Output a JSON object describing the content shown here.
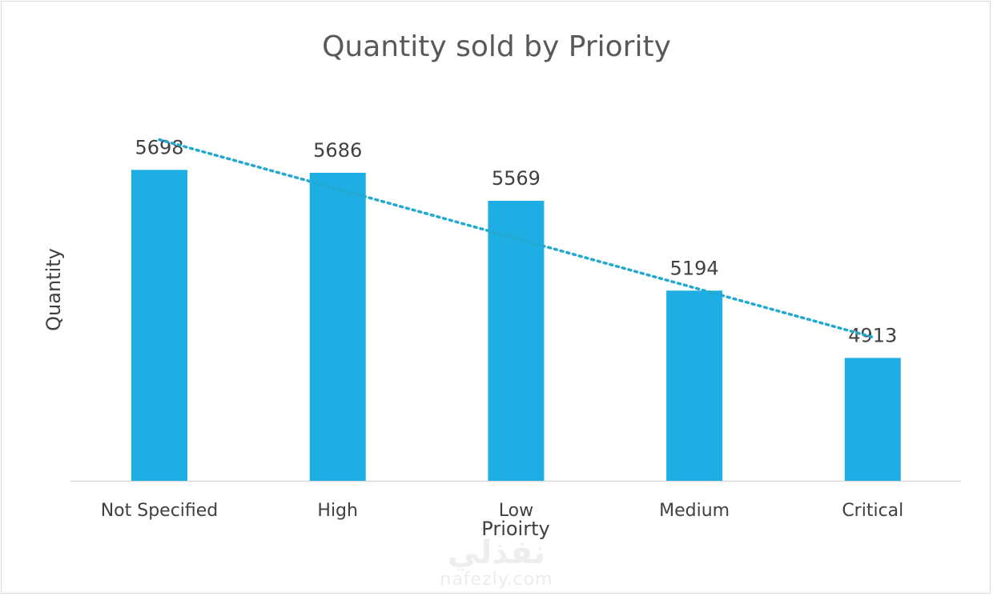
{
  "chart_data": {
    "type": "bar",
    "title": "Quantity sold by Priority",
    "xlabel": "Prioirty",
    "ylabel": "Quantity",
    "categories": [
      "Not Specified",
      "High",
      "Low",
      "Medium",
      "Critical"
    ],
    "values": [
      5698,
      5686,
      5569,
      5194,
      4913
    ],
    "data_labels": [
      "5698",
      "5686",
      "5569",
      "5194",
      "4913"
    ],
    "ylim": [
      4400,
      5900
    ],
    "grid": false,
    "legend": "none",
    "trendline": "linear",
    "colors": {
      "bar": "#1eaee3",
      "trendline": "#23a9cf",
      "text": "#595959",
      "axis": "#d9d9d9"
    }
  },
  "watermark": {
    "logo_text": "نفذلي",
    "site": "nafezly.com"
  }
}
